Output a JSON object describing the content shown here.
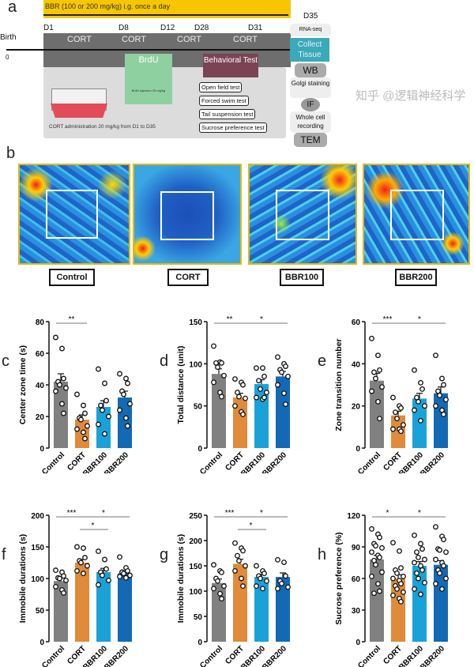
{
  "panel_a": {
    "letter": "a",
    "bbr_label": "BBR (100 or 200 mg/kg) i.g. once a day",
    "birth": "Birth",
    "zero": "0",
    "days": [
      "D1",
      "D8",
      "D12",
      "D28",
      "D31",
      "D35"
    ],
    "cort": "CORT",
    "brdu": "BrdU",
    "brdu_note": "BrdU injection 25 mg/kg",
    "behavioral": "Behavioral Test",
    "cort_admin": "CORT administration 20 mg/kg from D1 to D35",
    "tests": [
      "Open field test",
      "Forced swim test",
      "Tail suspension test",
      "Sucrose preference test"
    ],
    "right": [
      "RNA-seq",
      "Collect Tissue",
      "WB",
      "Golgi staining",
      "IF",
      "Whole cell recording",
      "TEM"
    ]
  },
  "panel_b": {
    "letter": "b",
    "groups": [
      "Control",
      "CORT",
      "BBR100",
      "BBR200"
    ]
  },
  "colors": {
    "Control": "#808080",
    "CORT": "#e08a3a",
    "BBR100": "#1aa2d8",
    "BBR200": "#1369b3",
    "yellow": "#f7c600",
    "teal": "#3aa9b8"
  },
  "watermark": "知乎 @逻辑神经科学",
  "chart_data": [
    {
      "id": "c",
      "type": "bar",
      "ylabel": "Center zone time (s)",
      "ylim": [
        0,
        80
      ],
      "ticks": [
        0,
        20,
        40,
        60,
        80
      ],
      "categories": [
        "Control",
        "CORT",
        "BBR100",
        "BBR200"
      ],
      "values": [
        42,
        18,
        26,
        32
      ],
      "sem": [
        5,
        3,
        4,
        4
      ],
      "points": [
        [
          70,
          63,
          44,
          42,
          40,
          38,
          36,
          28,
          22
        ],
        [
          34,
          27,
          22,
          19,
          18,
          14,
          12,
          10,
          6
        ],
        [
          50,
          41,
          30,
          27,
          24,
          20,
          15,
          9
        ],
        [
          47,
          44,
          41,
          36,
          34,
          28,
          24,
          19,
          14
        ]
      ],
      "sig": [
        {
          "from": 0,
          "to": 1,
          "label": "**",
          "level": 0
        }
      ]
    },
    {
      "id": "d",
      "type": "bar",
      "ylabel": "Total distance (unit)",
      "ylim": [
        0,
        150
      ],
      "ticks": [
        0,
        50,
        100,
        150
      ],
      "categories": [
        "Control",
        "CORT",
        "BBR100",
        "BBR200"
      ],
      "values": [
        88,
        60,
        76,
        85
      ],
      "sem": [
        6,
        5,
        5,
        6
      ],
      "points": [
        [
          121,
          102,
          101,
          101,
          96,
          86,
          78,
          66,
          61
        ],
        [
          82,
          78,
          75,
          66,
          61,
          59,
          50,
          43,
          40
        ],
        [
          95,
          95,
          85,
          80,
          70,
          66,
          60,
          58,
          60
        ],
        [
          108,
          100,
          97,
          93,
          90,
          85,
          75,
          65,
          52
        ]
      ],
      "sig": [
        {
          "from": 0,
          "to": 1,
          "label": "**",
          "level": 0
        },
        {
          "from": 1,
          "to": 3,
          "label": "*",
          "level": 0
        }
      ]
    },
    {
      "id": "e",
      "type": "bar",
      "ylabel": "Zone transition number",
      "ylim": [
        0,
        60
      ],
      "ticks": [
        0,
        20,
        40,
        60
      ],
      "categories": [
        "Control",
        "CORT",
        "BBR100",
        "BBR200"
      ],
      "values": [
        32,
        15.5,
        23.5,
        26
      ],
      "sem": [
        3.5,
        2,
        2.5,
        3
      ],
      "points": [
        [
          52,
          44,
          37,
          36,
          33,
          29,
          27,
          22,
          14
        ],
        [
          24,
          20,
          19,
          17,
          14,
          11,
          9,
          9,
          8
        ],
        [
          37,
          31,
          28,
          24,
          22,
          20,
          18,
          13
        ],
        [
          44,
          33,
          30,
          27,
          25,
          23,
          20,
          18,
          16
        ]
      ],
      "sig": [
        {
          "from": 0,
          "to": 1,
          "label": "***",
          "level": 0
        },
        {
          "from": 1,
          "to": 3,
          "label": "*",
          "level": 0
        }
      ]
    },
    {
      "id": "f",
      "type": "bar",
      "ylabel": "Immobile durations (s)",
      "ylim": [
        0,
        200
      ],
      "ticks": [
        0,
        50,
        100,
        150,
        200
      ],
      "categories": [
        "Control",
        "CORT",
        "BBR100",
        "BBR200"
      ],
      "values": [
        96,
        125,
        110,
        108
      ],
      "sem": [
        5,
        5,
        6,
        4
      ],
      "points": [
        [
          113,
          110,
          104,
          101,
          100,
          97,
          87,
          82,
          77
        ],
        [
          150,
          148,
          133,
          128,
          125,
          120,
          112,
          108
        ],
        [
          143,
          130,
          115,
          110,
          105,
          97,
          90
        ],
        [
          134,
          117,
          112,
          110,
          108,
          105,
          103,
          101
        ]
      ],
      "sig": [
        {
          "from": 0,
          "to": 1,
          "label": "***",
          "level": 0
        },
        {
          "from": 1,
          "to": 3,
          "label": "*",
          "level": 0
        },
        {
          "from": 1,
          "to": 2,
          "label": "*",
          "level": 1
        }
      ]
    },
    {
      "id": "g",
      "type": "bar",
      "ylabel": "Immobile durations (s)",
      "ylim": [
        0,
        250
      ],
      "ticks": [
        0,
        50,
        100,
        150,
        200,
        250
      ],
      "categories": [
        "Control",
        "CORT",
        "BBR100",
        "BBR200"
      ],
      "values": [
        116,
        154,
        128,
        128
      ],
      "sem": [
        8,
        9,
        5,
        8
      ],
      "points": [
        [
          152,
          140,
          137,
          125,
          120,
          110,
          105,
          95,
          85
        ],
        [
          195,
          185,
          180,
          170,
          160,
          150,
          140,
          125,
          110
        ],
        [
          150,
          140,
          135,
          130,
          125,
          120,
          110,
          105
        ],
        [
          162,
          157,
          130,
          120,
          115,
          108,
          105
        ]
      ],
      "sig": [
        {
          "from": 0,
          "to": 1,
          "label": "***",
          "level": 0
        },
        {
          "from": 1,
          "to": 3,
          "label": "*",
          "level": 0
        },
        {
          "from": 1,
          "to": 2,
          "label": "*",
          "level": 1
        }
      ]
    },
    {
      "id": "h",
      "type": "bar",
      "ylabel": "Sucrose preference (%)",
      "ylim": [
        0,
        120
      ],
      "ticks": [
        0,
        30,
        60,
        90,
        120
      ],
      "categories": [
        "Control",
        "CORT",
        "BBR100",
        "BBR200"
      ],
      "values": [
        78,
        60,
        72,
        73
      ],
      "sem": [
        4,
        3.5,
        4,
        4
      ],
      "points": [
        [
          107,
          102,
          99,
          93,
          91,
          89,
          85,
          82,
          80,
          77,
          73,
          66,
          62,
          55,
          48,
          46
        ],
        [
          94,
          86,
          70,
          68,
          65,
          62,
          60,
          58,
          55,
          53,
          50,
          47,
          44,
          41,
          38
        ],
        [
          101,
          93,
          88,
          85,
          80,
          78,
          75,
          72,
          68,
          65,
          60,
          56,
          50,
          45
        ],
        [
          109,
          100,
          97,
          88,
          87,
          85,
          78,
          75,
          72,
          68,
          65,
          60,
          55,
          50
        ]
      ],
      "sig": [
        {
          "from": 0,
          "to": 1,
          "label": "*",
          "level": 0
        },
        {
          "from": 1,
          "to": 3,
          "label": "*",
          "level": 0
        }
      ]
    }
  ]
}
